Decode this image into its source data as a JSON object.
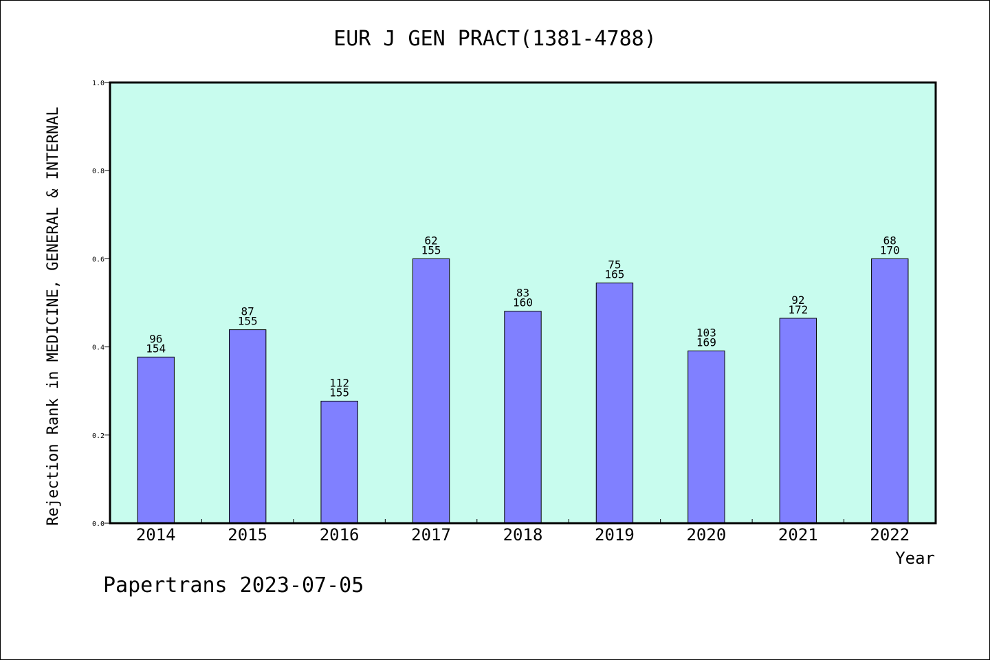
{
  "chart_data": {
    "type": "bar",
    "title": "EUR J GEN PRACT(1381-4788)",
    "xlabel": "Year",
    "ylabel": "Rejection Rank in MEDICINE, GENERAL & INTERNAL",
    "categories": [
      "2014",
      "2015",
      "2016",
      "2017",
      "2018",
      "2019",
      "2020",
      "2021",
      "2022"
    ],
    "values": [
      0.377,
      0.439,
      0.277,
      0.6,
      0.481,
      0.545,
      0.391,
      0.465,
      0.6
    ],
    "labels_top": [
      "96",
      "87",
      "112",
      "62",
      "83",
      "75",
      "103",
      "92",
      "68"
    ],
    "labels_bottom": [
      "154",
      "155",
      "155",
      "155",
      "160",
      "165",
      "169",
      "172",
      "170"
    ],
    "ylim": [
      0,
      1
    ],
    "yticks": [
      "0.0",
      "0.2",
      "0.4",
      "0.6",
      "0.8",
      "1.0"
    ],
    "grid": false,
    "colors": {
      "plot_background": "#c8fcee",
      "bar_fill": "#8080ff",
      "bar_stroke": "#000000"
    }
  },
  "footer": {
    "note": "Papertrans 2023-07-05"
  }
}
